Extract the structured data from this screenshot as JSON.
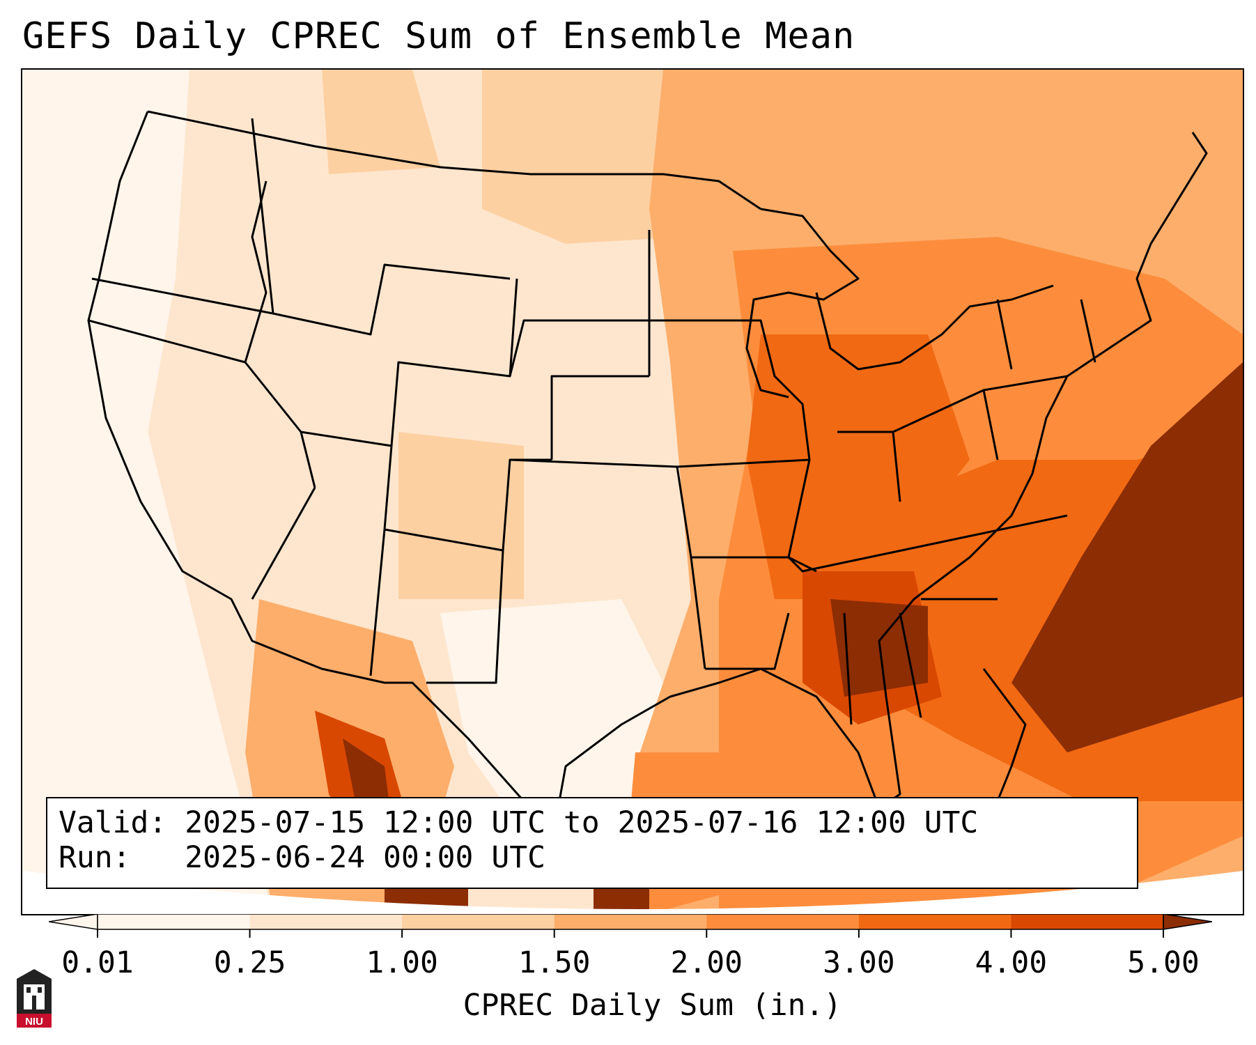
{
  "title": "GEFS Daily CPREC Sum of Ensemble Mean",
  "info": {
    "valid_label": "Valid:",
    "valid_value": "2025-07-15 12:00 UTC to 2025-07-16 12:00 UTC",
    "run_label": "Run:",
    "run_value": "2025-06-24 00:00 UTC"
  },
  "colorbar": {
    "label": "CPREC Daily Sum (in.)",
    "ticks": [
      "0.01",
      "0.25",
      "1.00",
      "1.50",
      "2.00",
      "3.00",
      "4.00",
      "5.00"
    ],
    "colors": [
      "#fff5eb",
      "#fee6ce",
      "#fdd0a2",
      "#fdae6b",
      "#fd8d3c",
      "#f16913",
      "#d94801",
      "#8c2d04"
    ],
    "extend": "both"
  },
  "logo": {
    "text": "NIU"
  },
  "map": {
    "region": "Continental United States",
    "projection": "Lambert Conformal"
  }
}
